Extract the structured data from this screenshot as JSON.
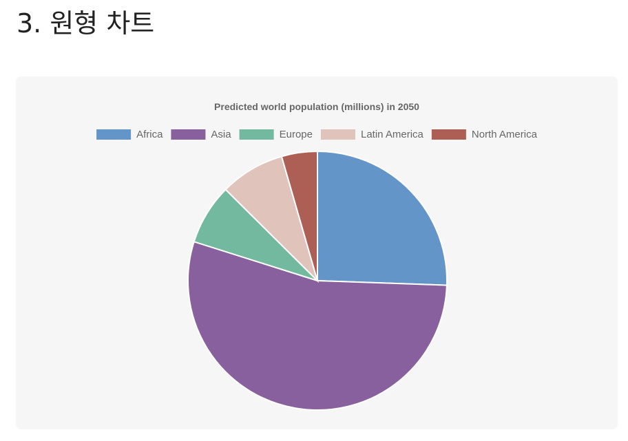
{
  "page": {
    "heading": "3. 원형 차트"
  },
  "chart_data": {
    "type": "pie",
    "title": "Predicted world population (millions) in 2050",
    "categories": [
      "Africa",
      "Asia",
      "Europe",
      "Latin America",
      "North America"
    ],
    "values": [
      2478,
      5267,
      734,
      784,
      433
    ],
    "colors": [
      "#6395c9",
      "#88609d",
      "#72b9a0",
      "#e0c4bb",
      "#ad5e55"
    ],
    "legend_position": "top"
  }
}
